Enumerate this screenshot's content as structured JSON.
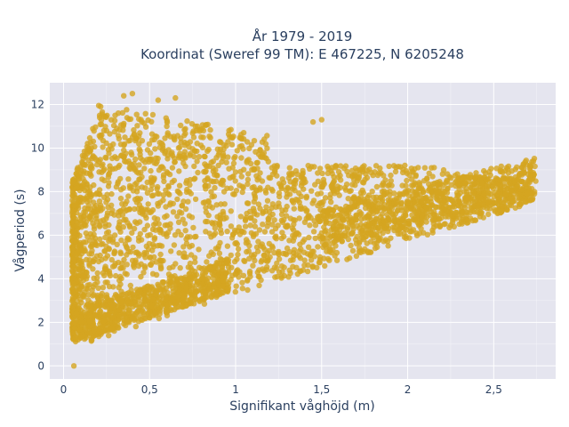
{
  "chart_data": {
    "type": "scatter",
    "title_line1": "År 1979 - 2019",
    "title_line2": "Koordinat (Sweref 99 TM): E 467225, N 6205248",
    "xlabel": "Signifikant våghöjd (m)",
    "ylabel": "Vågperiod (s)",
    "xlim": [
      -0.08,
      2.86
    ],
    "ylim": [
      -0.6,
      13.0
    ],
    "x_ticks": [
      0,
      0.5,
      1,
      1.5,
      2,
      2.5
    ],
    "x_tick_labels": [
      "0",
      "0,5",
      "1",
      "1,5",
      "2",
      "2,5"
    ],
    "y_ticks": [
      0,
      2,
      4,
      6,
      8,
      10,
      12
    ],
    "y_tick_labels": [
      "0",
      "2",
      "4",
      "6",
      "8",
      "10",
      "12"
    ],
    "grid": true,
    "marker_color": "#d4a520",
    "plot_background": "#e5e5ef",
    "series": [
      {
        "values_summary": "dense point cloud of wave height vs period",
        "x": [
          0.06,
          0.1,
          0.15,
          0.2,
          0.3,
          0.4,
          0.5,
          0.6,
          0.7,
          0.8,
          0.9,
          1.0,
          1.1,
          1.2,
          1.3,
          1.4,
          1.5,
          1.6,
          1.7,
          1.8,
          1.9,
          2.0,
          2.1,
          2.2,
          2.3,
          2.4,
          2.5,
          2.6,
          2.7,
          0.35,
          0.4,
          0.55,
          0.65,
          0.3,
          0.45,
          0.6,
          0.8,
          0.25,
          0.35,
          1.45,
          1.5,
          0.07,
          0.5,
          0.9,
          1.0
        ],
        "y": [
          0.0,
          1.3,
          1.5,
          1.7,
          2.0,
          2.2,
          2.5,
          2.8,
          3.1,
          3.5,
          3.8,
          4.2,
          4.6,
          5.0,
          5.4,
          5.8,
          6.1,
          6.4,
          6.7,
          7.0,
          7.3,
          7.5,
          7.7,
          7.9,
          8.1,
          8.2,
          8.4,
          8.6,
          8.8,
          12.4,
          12.5,
          12.2,
          12.3,
          11.5,
          11.3,
          11.0,
          10.5,
          10.8,
          9.9,
          11.2,
          11.3,
          1.3,
          9.5,
          9.2,
          8.9
        ]
      }
    ]
  }
}
